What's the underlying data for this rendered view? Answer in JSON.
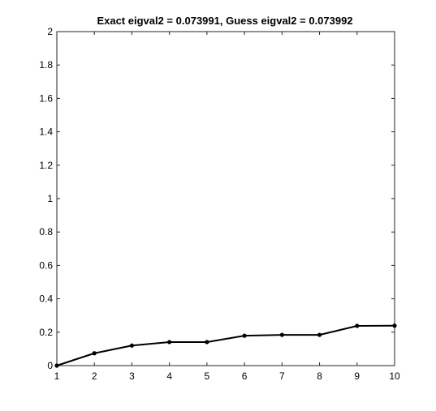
{
  "chart_data": {
    "type": "line",
    "title": "Exact eigval2 = 0.073991, Guess eigval2 = 0.073992",
    "xlabel": "",
    "ylabel": "",
    "x": [
      1,
      2,
      3,
      4,
      5,
      6,
      7,
      8,
      9,
      10
    ],
    "series": [
      {
        "values": [
          0,
          0.074,
          0.12,
          0.141,
          0.141,
          0.179,
          0.184,
          0.184,
          0.238,
          0.239
        ],
        "color": "#000000",
        "marker": "filled-circle"
      }
    ],
    "xlim": [
      1,
      10
    ],
    "ylim": [
      0,
      2
    ],
    "xticks": [
      1,
      2,
      3,
      4,
      5,
      6,
      7,
      8,
      9,
      10
    ],
    "yticks": [
      0,
      0.2,
      0.4,
      0.6,
      0.8,
      1,
      1.2,
      1.4,
      1.6,
      1.8,
      2
    ],
    "ytick_labels": [
      "0",
      "0.2",
      "0.4",
      "0.6",
      "0.8",
      "1",
      "1.2",
      "1.4",
      "1.6",
      "1.8",
      "2"
    ],
    "grid": false,
    "box": true
  }
}
